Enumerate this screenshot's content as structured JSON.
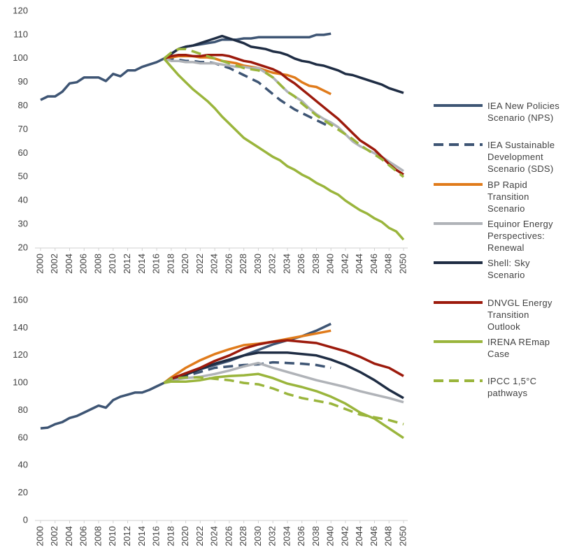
{
  "chart_data": [
    {
      "type": "line",
      "xlim": [
        2000,
        2050
      ],
      "ylim": [
        20,
        120
      ],
      "xticks": [
        2000,
        2002,
        2004,
        2006,
        2008,
        2010,
        2012,
        2014,
        2016,
        2018,
        2020,
        2022,
        2024,
        2026,
        2028,
        2030,
        2032,
        2034,
        2036,
        2038,
        2040,
        2042,
        2044,
        2046,
        2048,
        2050
      ],
      "yticks": [
        20,
        30,
        40,
        50,
        60,
        70,
        80,
        90,
        100,
        110,
        120
      ],
      "series": [
        {
          "name": "IEA New Policies Scenario (NPS)",
          "color": "#3e5574",
          "dashed": false,
          "x": [
            2000,
            2001,
            2002,
            2003,
            2004,
            2005,
            2006,
            2007,
            2008,
            2009,
            2010,
            2011,
            2012,
            2013,
            2014,
            2015,
            2016,
            2017,
            2018,
            2019,
            2020,
            2021,
            2022,
            2023,
            2024,
            2025,
            2026,
            2027,
            2028,
            2029,
            2030,
            2031,
            2032,
            2033,
            2034,
            2035,
            2036,
            2037,
            2038,
            2039,
            2040
          ],
          "values": [
            82.5,
            84,
            84,
            86,
            89.5,
            90,
            92,
            92,
            92,
            90.5,
            93.5,
            92.5,
            95,
            95,
            96.5,
            97.5,
            98.5,
            100,
            102,
            104,
            105,
            105.5,
            106,
            106.5,
            107,
            108,
            108,
            108,
            108.5,
            108.5,
            109,
            109,
            109,
            109,
            109,
            109,
            109,
            109,
            110,
            110,
            110.5
          ]
        },
        {
          "name": "IEA Sustainable Development Scenario (SDS)",
          "color": "#3e5574",
          "dashed": true,
          "x": [
            2017,
            2018,
            2019,
            2020,
            2021,
            2022,
            2023,
            2024,
            2025,
            2026,
            2027,
            2028,
            2029,
            2030,
            2031,
            2032,
            2033,
            2034,
            2035,
            2036,
            2037,
            2038,
            2039,
            2040
          ],
          "values": [
            100,
            100,
            99.5,
            99,
            99,
            98.5,
            98.5,
            98,
            97,
            96,
            94.5,
            93,
            91.5,
            90,
            87.5,
            85,
            82.5,
            80.5,
            78.5,
            77,
            75.5,
            74,
            72.5,
            71
          ]
        },
        {
          "name": "BP Rapid Transition Scenario",
          "color": "#e07b1b",
          "dashed": false,
          "x": [
            2017,
            2018,
            2019,
            2020,
            2021,
            2022,
            2023,
            2024,
            2025,
            2026,
            2027,
            2028,
            2029,
            2030,
            2031,
            2032,
            2033,
            2034,
            2035,
            2036,
            2037,
            2038,
            2039,
            2040
          ],
          "values": [
            100,
            100.5,
            101,
            101,
            101,
            100.5,
            100.5,
            100,
            99,
            98.5,
            98,
            97,
            96.5,
            96,
            95,
            94,
            93.5,
            93,
            92,
            90,
            88.5,
            88,
            86.5,
            85
          ]
        },
        {
          "name": "Equinor Energy Perspectives: Renewal",
          "color": "#b0b3b8",
          "dashed": false,
          "x": [
            2017,
            2018,
            2019,
            2020,
            2021,
            2022,
            2023,
            2024,
            2025,
            2026,
            2027,
            2028,
            2029,
            2030,
            2031,
            2032,
            2033,
            2034,
            2035,
            2036,
            2037,
            2038,
            2039,
            2040,
            2041,
            2042,
            2043,
            2044,
            2045,
            2046,
            2047,
            2048,
            2049,
            2050
          ],
          "values": [
            100,
            99,
            99,
            98.5,
            98.5,
            98,
            98,
            98,
            97.5,
            97,
            96.5,
            96.5,
            96,
            96,
            94,
            92,
            89,
            86,
            84,
            82,
            79,
            76.5,
            74.5,
            73,
            71,
            68,
            65,
            63,
            61.5,
            60,
            58.5,
            56.5,
            54.5,
            52.5
          ]
        },
        {
          "name": "Shell: Sky Scenario",
          "color": "#1f2d44",
          "dashed": false,
          "x": [
            2017,
            2018,
            2019,
            2020,
            2021,
            2022,
            2023,
            2024,
            2025,
            2026,
            2027,
            2028,
            2029,
            2030,
            2031,
            2032,
            2033,
            2034,
            2035,
            2036,
            2037,
            2038,
            2039,
            2040,
            2041,
            2042,
            2043,
            2044,
            2045,
            2046,
            2047,
            2048,
            2049,
            2050
          ],
          "values": [
            100,
            102,
            104,
            105,
            105.5,
            106.5,
            107.5,
            108.5,
            109.5,
            108.5,
            107.5,
            106.5,
            105,
            104.5,
            104,
            103,
            102.5,
            101.5,
            100,
            99,
            98.5,
            97.5,
            97,
            96,
            95,
            93.5,
            93,
            92,
            91,
            90,
            89,
            87.5,
            86.5,
            85.5
          ]
        },
        {
          "name": "DNVGL Energy Transition Outlook",
          "color": "#9c1a0c",
          "dashed": false,
          "x": [
            2017,
            2018,
            2019,
            2020,
            2021,
            2022,
            2023,
            2024,
            2025,
            2026,
            2027,
            2028,
            2029,
            2030,
            2031,
            2032,
            2033,
            2034,
            2035,
            2036,
            2037,
            2038,
            2039,
            2040,
            2041,
            2042,
            2043,
            2044,
            2045,
            2046,
            2047,
            2048,
            2049,
            2050
          ],
          "values": [
            100,
            101,
            101.5,
            101.5,
            101,
            101,
            101.5,
            101.5,
            101.5,
            101,
            100,
            99,
            98.5,
            97.5,
            96.5,
            95.5,
            94,
            91.5,
            89.5,
            87,
            84.5,
            82,
            79.5,
            77,
            74.5,
            71.5,
            68.5,
            65.5,
            63.5,
            61.5,
            58.5,
            55.5,
            53,
            51
          ]
        },
        {
          "name": "IRENA REmap Case",
          "color": "#9ab53c",
          "dashed": false,
          "x": [
            2017,
            2018,
            2019,
            2020,
            2021,
            2022,
            2023,
            2024,
            2025,
            2026,
            2027,
            2028,
            2029,
            2030,
            2031,
            2032,
            2033,
            2034,
            2035,
            2036,
            2037,
            2038,
            2039,
            2040,
            2041,
            2042,
            2043,
            2044,
            2045,
            2046,
            2047,
            2048,
            2049,
            2050
          ],
          "values": [
            100,
            96.5,
            93,
            90,
            87,
            84.5,
            82,
            79,
            75.5,
            72.5,
            69.5,
            66.5,
            64.5,
            62.5,
            60.5,
            58.5,
            57,
            54.5,
            53,
            51,
            49.5,
            47.5,
            46,
            44,
            42.5,
            40,
            38,
            36,
            34.5,
            32.5,
            31,
            28.5,
            27,
            23.5
          ]
        },
        {
          "name": "IPCC 1,5°C pathways",
          "color": "#9ab53c",
          "dashed": true,
          "x": [
            2017,
            2018,
            2019,
            2020,
            2021,
            2022,
            2023,
            2024,
            2025,
            2026,
            2027,
            2028,
            2029,
            2030,
            2031,
            2032,
            2033,
            2034,
            2035,
            2036,
            2037,
            2038,
            2039,
            2040,
            2041,
            2042,
            2043,
            2044,
            2045,
            2046,
            2047,
            2048,
            2049,
            2050
          ],
          "values": [
            100,
            102.5,
            104,
            104,
            103,
            102,
            101,
            100,
            99,
            98,
            97,
            96,
            95.5,
            95,
            94,
            92,
            89,
            86,
            84,
            81,
            78.5,
            76,
            74,
            72,
            70,
            68,
            66,
            63.5,
            61.5,
            59.5,
            57.5,
            55,
            52.5,
            50
          ]
        }
      ]
    },
    {
      "type": "line",
      "xlim": [
        2000,
        2050
      ],
      "ylim": [
        0,
        160
      ],
      "xticks": [
        2000,
        2002,
        2004,
        2006,
        2008,
        2010,
        2012,
        2014,
        2016,
        2018,
        2020,
        2022,
        2024,
        2026,
        2028,
        2030,
        2032,
        2034,
        2036,
        2038,
        2040,
        2042,
        2044,
        2046,
        2048,
        2050
      ],
      "yticks": [
        0,
        20,
        40,
        60,
        80,
        100,
        120,
        140,
        160
      ],
      "series": [
        {
          "color": "#3e5574",
          "dashed": false,
          "x": [
            2000,
            2001,
            2002,
            2003,
            2004,
            2005,
            2006,
            2007,
            2008,
            2009,
            2010,
            2011,
            2012,
            2013,
            2014,
            2015,
            2016,
            2017,
            2018,
            2020,
            2022,
            2024,
            2026,
            2028,
            2030,
            2032,
            2034,
            2036,
            2038,
            2040
          ],
          "values": [
            67,
            67.5,
            70,
            71.5,
            74.5,
            76,
            78.5,
            81,
            83.5,
            82,
            87.5,
            90,
            91.5,
            93,
            93,
            95,
            97.5,
            100,
            103,
            107,
            110,
            113,
            116,
            120,
            124,
            128,
            131,
            134,
            138,
            143
          ]
        },
        {
          "color": "#3e5574",
          "dashed": true,
          "x": [
            2017,
            2018,
            2020,
            2022,
            2024,
            2026,
            2028,
            2030,
            2032,
            2034,
            2036,
            2038,
            2040
          ],
          "values": [
            100,
            102,
            105,
            108,
            111,
            112,
            113,
            113.5,
            115,
            114.5,
            114,
            113,
            111
          ]
        },
        {
          "color": "#e07b1b",
          "dashed": false,
          "x": [
            2017,
            2018,
            2020,
            2022,
            2024,
            2026,
            2028,
            2030,
            2032,
            2034,
            2036,
            2038,
            2040
          ],
          "values": [
            100,
            104,
            111,
            116.5,
            121,
            124.5,
            127.5,
            128.5,
            130,
            132,
            134,
            136,
            138
          ]
        },
        {
          "color": "#b0b3b8",
          "dashed": false,
          "x": [
            2017,
            2018,
            2020,
            2022,
            2024,
            2026,
            2028,
            2030,
            2032,
            2034,
            2036,
            2038,
            2040,
            2042,
            2044,
            2046,
            2048,
            2050
          ],
          "values": [
            100,
            102,
            103.5,
            104.5,
            106.5,
            109,
            112,
            114.5,
            111,
            108,
            105,
            102,
            99.5,
            97,
            94,
            91.5,
            89,
            86
          ]
        },
        {
          "color": "#1f2d44",
          "dashed": false,
          "x": [
            2017,
            2018,
            2020,
            2022,
            2024,
            2026,
            2028,
            2030,
            2032,
            2034,
            2036,
            2038,
            2040,
            2042,
            2044,
            2046,
            2048,
            2050
          ],
          "values": [
            100,
            103,
            106,
            110,
            114,
            117,
            120,
            122,
            122,
            122,
            121,
            120,
            117,
            113,
            108,
            102,
            95,
            89
          ]
        },
        {
          "color": "#9c1a0c",
          "dashed": false,
          "x": [
            2017,
            2018,
            2020,
            2022,
            2024,
            2026,
            2028,
            2030,
            2032,
            2034,
            2036,
            2038,
            2040,
            2042,
            2044,
            2046,
            2048,
            2050
          ],
          "values": [
            100,
            103,
            107,
            111,
            116,
            120,
            125,
            128,
            130,
            131,
            130,
            129,
            126,
            123,
            119,
            114,
            111,
            105
          ]
        },
        {
          "color": "#9ab53c",
          "dashed": false,
          "x": [
            2017,
            2018,
            2020,
            2022,
            2024,
            2026,
            2028,
            2030,
            2032,
            2034,
            2036,
            2038,
            2040,
            2042,
            2044,
            2046,
            2048,
            2050
          ],
          "values": [
            100,
            101,
            101,
            102,
            104,
            105,
            105.5,
            106.5,
            103.5,
            99.5,
            97,
            94,
            90,
            85,
            78.5,
            74,
            67,
            60
          ]
        },
        {
          "color": "#9ab53c",
          "dashed": true,
          "x": [
            2017,
            2018,
            2020,
            2022,
            2024,
            2026,
            2028,
            2030,
            2032,
            2034,
            2036,
            2038,
            2040,
            2042,
            2044,
            2046,
            2048,
            2050
          ],
          "values": [
            100,
            103,
            104,
            104,
            103,
            102,
            100,
            99,
            96,
            92,
            89,
            87,
            85,
            81,
            77,
            75,
            73,
            70
          ]
        }
      ]
    }
  ]
}
